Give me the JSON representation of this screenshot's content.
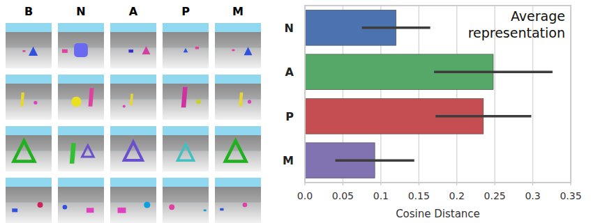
{
  "chart_data": {
    "type": "bar",
    "orientation": "horizontal",
    "annotation": "Average representation",
    "x_label": "Cosine Distance",
    "categories": [
      "N",
      "A",
      "P",
      "M"
    ],
    "values": [
      0.12,
      0.248,
      0.235,
      0.092
    ],
    "errors": [
      0.045,
      0.078,
      0.063,
      0.052
    ],
    "colors": [
      "#4c72b0",
      "#55a868",
      "#c44e52",
      "#8172b2"
    ],
    "xlim": [
      0,
      0.35
    ],
    "xticks": [
      {
        "value": 0,
        "label": "0.0"
      },
      0.05,
      0.1,
      0.15,
      0.2,
      0.25,
      0.3,
      0.35
    ],
    "grid": true
  },
  "image_grid": {
    "columns": [
      "B",
      "N",
      "A",
      "P",
      "M"
    ]
  }
}
